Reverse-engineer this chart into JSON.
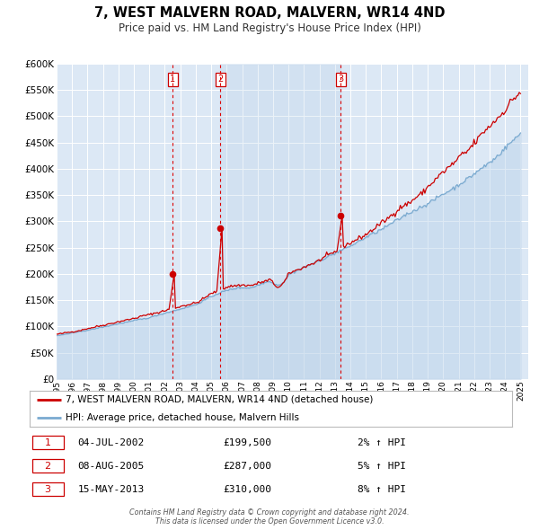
{
  "title": "7, WEST MALVERN ROAD, MALVERN, WR14 4ND",
  "subtitle": "Price paid vs. HM Land Registry's House Price Index (HPI)",
  "bg_color": "#dce8f5",
  "grid_color": "#ffffff",
  "red_line_color": "#cc0000",
  "blue_line_color": "#7aaad0",
  "blue_fill_color": "#c8ddf0",
  "year_start": 1995,
  "year_end": 2025,
  "ylim": [
    0,
    600000
  ],
  "yticks": [
    0,
    50000,
    100000,
    150000,
    200000,
    250000,
    300000,
    350000,
    400000,
    450000,
    500000,
    550000,
    600000
  ],
  "sale_years_dec": [
    2002.51,
    2005.6,
    2013.37
  ],
  "sale_prices": [
    199500,
    287000,
    310000
  ],
  "sale_labels": [
    "1",
    "2",
    "3"
  ],
  "legend_entries": [
    "7, WEST MALVERN ROAD, MALVERN, WR14 4ND (detached house)",
    "HPI: Average price, detached house, Malvern Hills"
  ],
  "table_data": [
    [
      "1",
      "04-JUL-2002",
      "£199,500",
      "2% ↑ HPI"
    ],
    [
      "2",
      "08-AUG-2005",
      "£287,000",
      "5% ↑ HPI"
    ],
    [
      "3",
      "15-MAY-2013",
      "£310,000",
      "8% ↑ HPI"
    ]
  ],
  "footer": "Contains HM Land Registry data © Crown copyright and database right 2024.\nThis data is licensed under the Open Government Licence v3.0."
}
